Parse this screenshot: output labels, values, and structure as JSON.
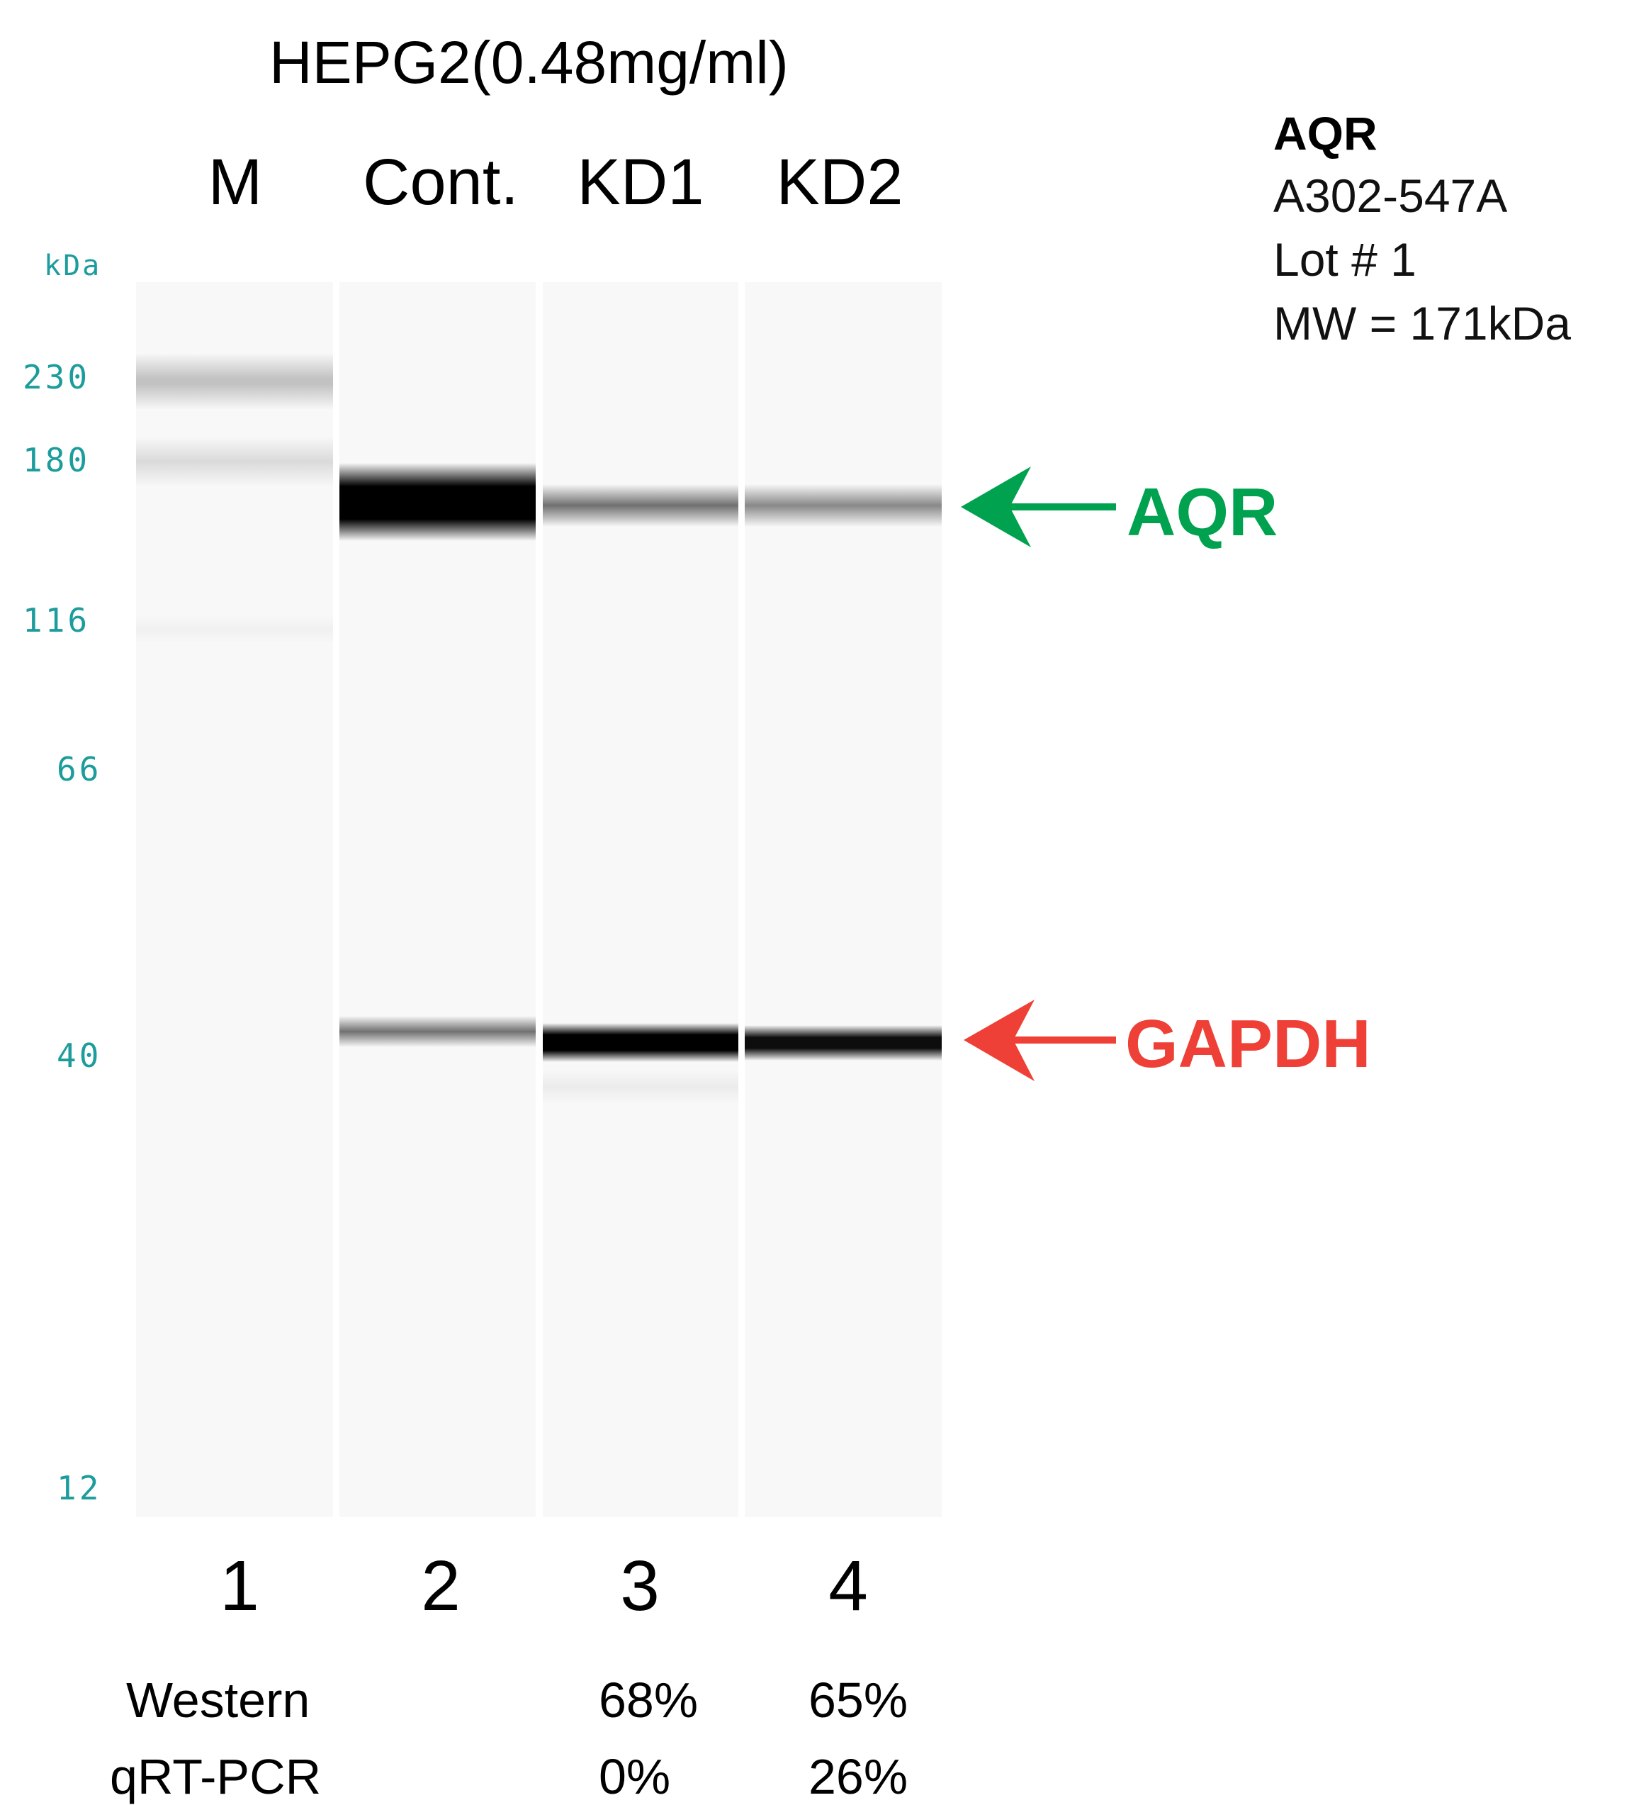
{
  "title": "HEPG2(0.48mg/ml)",
  "lanes": [
    {
      "name": "M",
      "number": "1"
    },
    {
      "name": "Cont.",
      "number": "2"
    },
    {
      "name": "KD1",
      "number": "3"
    },
    {
      "name": "KD2",
      "number": "4"
    }
  ],
  "ladder": {
    "unit": "kDa",
    "markers": [
      "230",
      "180",
      "116",
      "66",
      "40",
      "12"
    ]
  },
  "info": {
    "target": "AQR",
    "catalog": "A302-547A",
    "lot": "Lot # 1",
    "mw": "MW = 171kDa"
  },
  "annotations": {
    "aqr": {
      "label": "AQR",
      "color": "#00a24f"
    },
    "gapdh": {
      "label": "GAPDH",
      "color": "#ee4036"
    }
  },
  "quantification": {
    "western_label": "Western",
    "qrtpcr_label": "qRT-PCR",
    "western": [
      "",
      "",
      "68%",
      "65%"
    ],
    "qrtpcr": [
      "",
      "",
      "0%",
      "26%"
    ]
  }
}
